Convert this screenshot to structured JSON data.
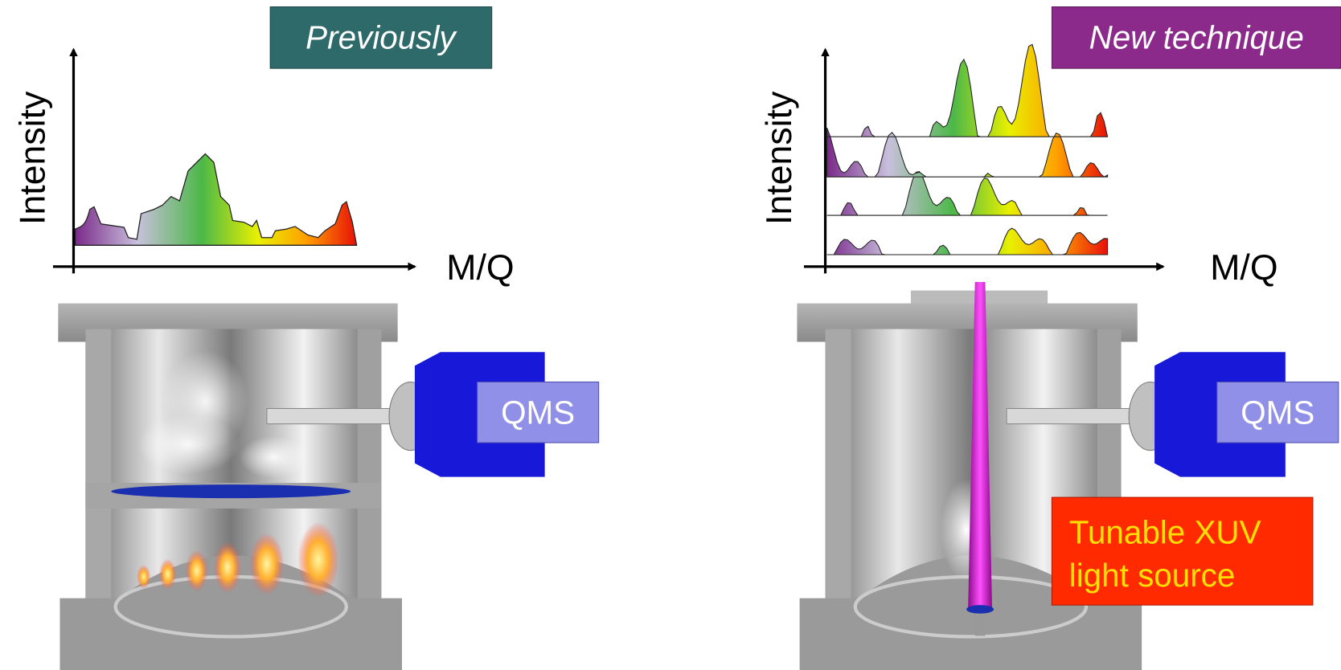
{
  "panels": [
    {
      "title": "Previously",
      "y_axis_label": "Intensity",
      "x_axis_label": "M/Q",
      "detector_label": "QMS"
    },
    {
      "title": "New technique",
      "y_axis_label": "Intensity",
      "x_axis_label": "M/Q",
      "detector_label": "QMS",
      "callout": [
        "Tunable XUV",
        "light source"
      ]
    }
  ]
}
